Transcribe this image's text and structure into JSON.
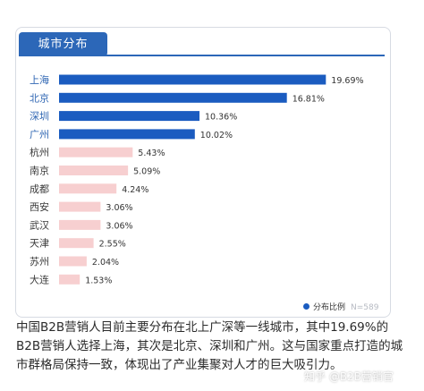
{
  "header": {
    "tab_label": "城市分布"
  },
  "legend": {
    "label": "分布比例",
    "n_label": "N=589"
  },
  "colors": {
    "top4": "#1b5cc0",
    "rest": "#f7cfd0",
    "tab": "#2c67b8",
    "top4_text": "#2f66b3",
    "rest_text": "#3a3a3a"
  },
  "caption": "中国B2B营销人目前主要分布在北上广深等一线城市，其中19.69%的B2B营销人选择上海，其次是北京、深圳和广州。这与国家重点打造的城市群格局保持一致，体现出了产业集聚对人才的巨大吸引力。",
  "watermark": "知乎 @B2B营销官",
  "chart_data": {
    "type": "bar",
    "orientation": "horizontal",
    "categories": [
      "上海",
      "北京",
      "深圳",
      "广州",
      "杭州",
      "南京",
      "成都",
      "西安",
      "武汉",
      "天津",
      "苏州",
      "大连"
    ],
    "values": [
      19.69,
      16.81,
      10.36,
      10.02,
      5.43,
      5.09,
      4.24,
      3.06,
      3.06,
      2.55,
      2.04,
      1.53
    ],
    "value_labels": [
      "19.69%",
      "16.81%",
      "10.36%",
      "10.02%",
      "5.43%",
      "5.09%",
      "4.24%",
      "3.06%",
      "3.06%",
      "2.55%",
      "2.04%",
      "1.53%"
    ],
    "highlight_count": 4,
    "series": [
      {
        "name": "分布比例",
        "values": [
          19.69,
          16.81,
          10.36,
          10.02,
          5.43,
          5.09,
          4.24,
          3.06,
          3.06,
          2.55,
          2.04,
          1.53
        ]
      }
    ],
    "unit": "%",
    "xlim": [
      0,
      20
    ],
    "grid": false,
    "legend_position": "bottom-right"
  }
}
